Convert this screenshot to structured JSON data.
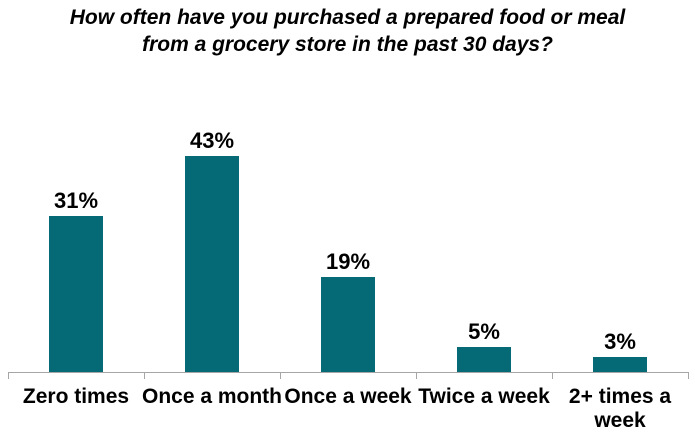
{
  "colors": {
    "bar": "#056a76",
    "axis": "#a6a6a6",
    "text": "#000000",
    "background": "#ffffff"
  },
  "chart_data": {
    "type": "bar",
    "title": "How often have you purchased a prepared food or meal\nfrom a grocery store in the past 30 days?",
    "categories": [
      "Zero times",
      "Once a month",
      "Once a week",
      "Twice a week",
      "2+ times a\nweek"
    ],
    "values": [
      31,
      43,
      19,
      5,
      3
    ],
    "value_labels": [
      "31%",
      "43%",
      "19%",
      "5%",
      "3%"
    ],
    "xlabel": "",
    "ylabel": "",
    "ylim": [
      0,
      50
    ],
    "grid": false,
    "legend": false,
    "bar_color": "#056a76"
  }
}
